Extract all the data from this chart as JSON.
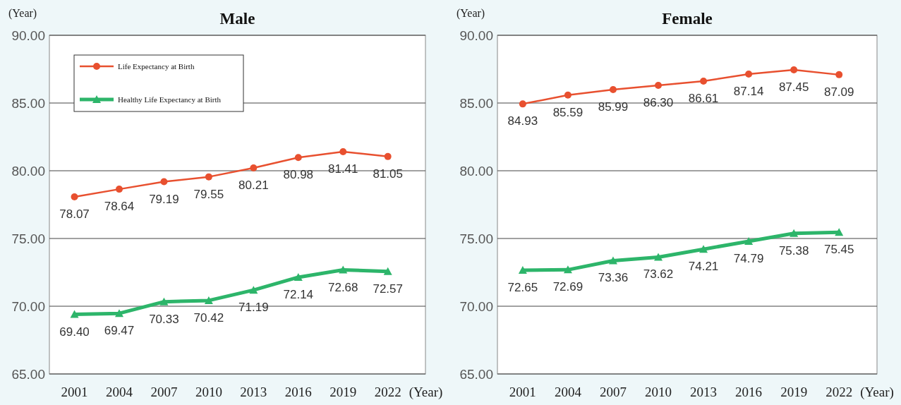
{
  "chart_data": [
    {
      "type": "line",
      "title": "Male",
      "xlabel": "(Year)",
      "ylabel": "(Year)",
      "categories": [
        "2001",
        "2004",
        "2007",
        "2010",
        "2013",
        "2016",
        "2019",
        "2022"
      ],
      "series": [
        {
          "name": "Life Expectancy at Birth",
          "color": "#e8502f",
          "marker": "circle",
          "values": [
            78.07,
            78.64,
            79.19,
            79.55,
            80.21,
            80.98,
            81.41,
            81.05
          ],
          "value_labels": [
            "78.07",
            "78.64",
            "79.19",
            "79.55",
            "80.21",
            "80.98",
            "81.41",
            "81.05"
          ]
        },
        {
          "name": "Healthy Life Expectancy at Birth",
          "color": "#2db56a",
          "marker": "triangle",
          "values": [
            69.4,
            69.47,
            70.33,
            70.42,
            71.19,
            72.14,
            72.68,
            72.57
          ],
          "value_labels": [
            "69.40",
            "69.47",
            "70.33",
            "70.42",
            "71.19",
            "72.14",
            "72.68",
            "72.57"
          ]
        }
      ],
      "ylim": [
        65,
        90
      ],
      "yticks": [
        {
          "value": 65,
          "label": "65.00"
        },
        {
          "value": 70,
          "label": "70.00"
        },
        {
          "value": 75,
          "label": "75.00"
        },
        {
          "value": 80,
          "label": "80.00"
        },
        {
          "value": 85,
          "label": "85.00"
        },
        {
          "value": 90,
          "label": "90.00"
        }
      ],
      "grid": "y",
      "legend": "top left"
    },
    {
      "type": "line",
      "title": "Female",
      "xlabel": "(Year)",
      "ylabel": "(Year)",
      "categories": [
        "2001",
        "2004",
        "2007",
        "2010",
        "2013",
        "2016",
        "2019",
        "2022"
      ],
      "series": [
        {
          "color": "#e8502f",
          "marker": "circle",
          "values": [
            84.93,
            85.59,
            85.99,
            86.3,
            86.61,
            87.14,
            87.45,
            87.09
          ],
          "value_labels": [
            "84.93",
            "85.59",
            "85.99",
            "86.30",
            "86.61",
            "87.14",
            "87.45",
            "87.09"
          ]
        },
        {
          "color": "#2db56a",
          "marker": "triangle",
          "values": [
            72.65,
            72.69,
            73.36,
            73.62,
            74.21,
            74.79,
            75.38,
            75.45
          ],
          "value_labels": [
            "72.65",
            "72.69",
            "73.36",
            "73.62",
            "74.21",
            "74.79",
            "75.38",
            "75.45"
          ]
        }
      ],
      "ylim": [
        65,
        90
      ],
      "yticks": [
        {
          "value": 65,
          "label": "65.00"
        },
        {
          "value": 70,
          "label": "70.00"
        },
        {
          "value": 75,
          "label": "75.00"
        },
        {
          "value": 80,
          "label": "80.00"
        },
        {
          "value": 85,
          "label": "85.00"
        },
        {
          "value": 90,
          "label": "90.00"
        }
      ],
      "grid": "y"
    }
  ]
}
